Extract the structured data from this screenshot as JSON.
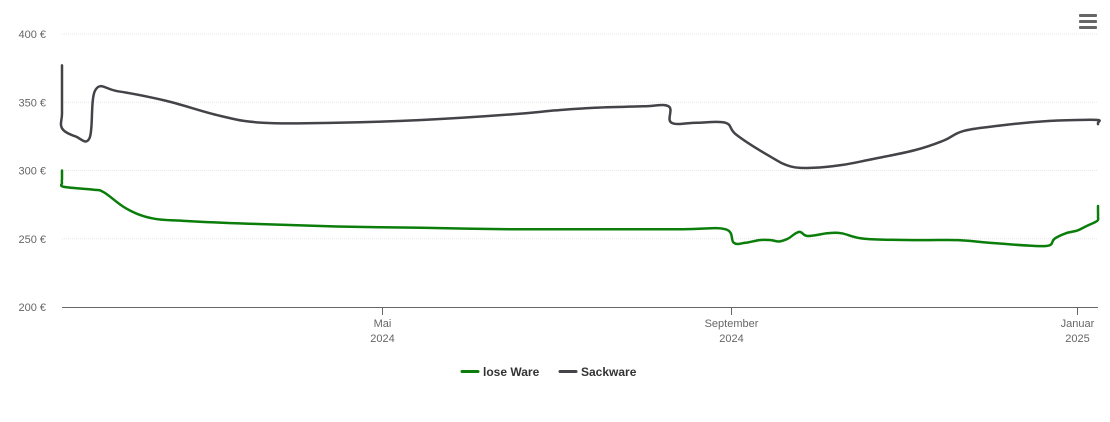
{
  "menu": {
    "icon": "hamburger-menu-icon"
  },
  "colors": {
    "lose_ware": "#0a7d0a",
    "sackware": "#434348",
    "grid": "#e6e6e6",
    "axis": "#666666"
  },
  "chart_data": {
    "type": "line",
    "title": "",
    "xlabel": "",
    "ylabel": "",
    "ylim": [
      200,
      400
    ],
    "y_ticks": [
      {
        "value": 400,
        "label": "400 €"
      },
      {
        "value": 350,
        "label": "350 €"
      },
      {
        "value": 300,
        "label": "300 €"
      },
      {
        "value": 250,
        "label": "250 €"
      },
      {
        "value": 200,
        "label": "200 €"
      }
    ],
    "xlim": [
      "2023-11-29",
      "2025-01-08"
    ],
    "x_ticks": [
      {
        "date": "2024-05-01",
        "month": "Mai",
        "year": "2024"
      },
      {
        "date": "2024-09-01",
        "month": "September",
        "year": "2024"
      },
      {
        "date": "2025-01-01",
        "month": "Januar",
        "year": "2025"
      }
    ],
    "grid": true,
    "legend_position": "bottom-center",
    "series": [
      {
        "name": "lose Ware",
        "color": "#0a7d0a",
        "points": [
          [
            "2023-11-29",
            300
          ],
          [
            "2023-12-14",
            297
          ],
          [
            "2023-12-26",
            294
          ],
          [
            "2024-01-01",
            291
          ],
          [
            "2024-01-10",
            288
          ],
          [
            "2024-01-20",
            286
          ],
          [
            "2024-01-24",
            284
          ],
          [
            "2024-02-01",
            272
          ],
          [
            "2024-02-10",
            265
          ],
          [
            "2024-02-22",
            263
          ],
          [
            "2024-03-15",
            261
          ],
          [
            "2024-04-15",
            259
          ],
          [
            "2024-05-15",
            258
          ],
          [
            "2024-06-15",
            257
          ],
          [
            "2024-07-15",
            257
          ],
          [
            "2024-08-15",
            257
          ],
          [
            "2024-08-30",
            257
          ],
          [
            "2024-09-02",
            247
          ],
          [
            "2024-09-06",
            247
          ],
          [
            "2024-09-11",
            249
          ],
          [
            "2024-09-15",
            249
          ],
          [
            "2024-09-18",
            248
          ],
          [
            "2024-09-21",
            250
          ],
          [
            "2024-09-25",
            255
          ],
          [
            "2024-09-28",
            252
          ],
          [
            "2024-10-05",
            254
          ],
          [
            "2024-10-10",
            254
          ],
          [
            "2024-10-18",
            250
          ],
          [
            "2024-11-05",
            249
          ],
          [
            "2024-11-20",
            249
          ],
          [
            "2024-12-01",
            247
          ],
          [
            "2024-12-15",
            245
          ],
          [
            "2024-12-22",
            245
          ],
          [
            "2024-12-24",
            250
          ],
          [
            "2024-12-28",
            254
          ],
          [
            "2025-01-01",
            256
          ],
          [
            "2025-01-04",
            259
          ],
          [
            "2025-01-08",
            263
          ],
          [
            "2025-01-12",
            266
          ],
          [
            "2025-01-15",
            270
          ],
          [
            "2025-01-19",
            272
          ],
          [
            "2025-01-25",
            274
          ]
        ]
      },
      {
        "name": "Sackware",
        "color": "#434348",
        "points": [
          [
            "2023-11-29",
            377
          ],
          [
            "2023-12-10",
            361
          ],
          [
            "2023-12-25",
            342
          ],
          [
            "2024-01-05",
            331
          ],
          [
            "2024-01-14",
            325
          ],
          [
            "2024-01-19",
            324
          ],
          [
            "2024-01-21",
            359
          ],
          [
            "2024-01-29",
            358
          ],
          [
            "2024-02-15",
            351
          ],
          [
            "2024-03-05",
            340
          ],
          [
            "2024-03-20",
            335
          ],
          [
            "2024-04-15",
            335
          ],
          [
            "2024-05-15",
            337
          ],
          [
            "2024-06-15",
            341
          ],
          [
            "2024-07-01",
            344
          ],
          [
            "2024-07-15",
            346
          ],
          [
            "2024-08-01",
            347
          ],
          [
            "2024-08-10",
            347
          ],
          [
            "2024-08-11",
            335
          ],
          [
            "2024-08-20",
            335
          ],
          [
            "2024-08-30",
            335
          ],
          [
            "2024-09-03",
            326
          ],
          [
            "2024-09-15",
            310
          ],
          [
            "2024-09-22",
            303
          ],
          [
            "2024-09-30",
            302
          ],
          [
            "2024-10-10",
            304
          ],
          [
            "2024-10-20",
            308
          ],
          [
            "2024-11-05",
            315
          ],
          [
            "2024-11-15",
            322
          ],
          [
            "2024-11-22",
            329
          ],
          [
            "2024-12-05",
            333
          ],
          [
            "2024-12-20",
            336
          ],
          [
            "2025-01-01",
            337
          ],
          [
            "2025-01-10",
            337
          ],
          [
            "2025-01-18",
            335
          ],
          [
            "2025-01-25",
            334
          ]
        ]
      }
    ]
  }
}
